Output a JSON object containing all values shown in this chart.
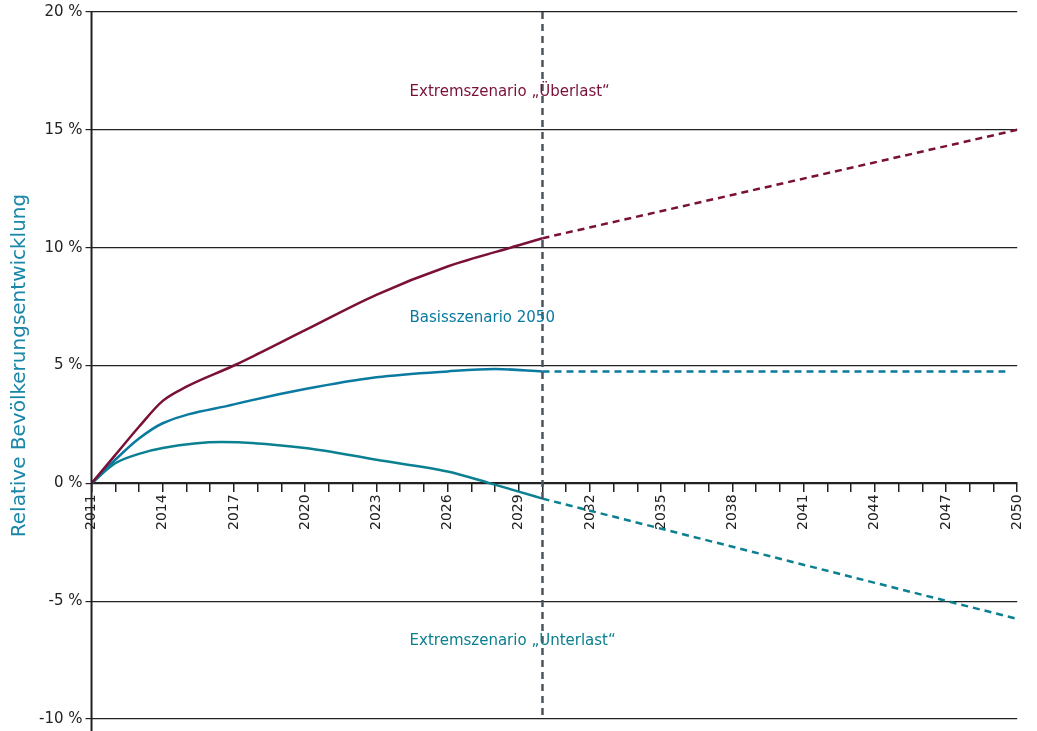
{
  "chart_data": {
    "type": "line",
    "ylabel": "Relative Bevölkerungsentwicklung",
    "xlim": [
      2011,
      2050
    ],
    "ylim": [
      -10,
      20
    ],
    "xticks": [
      2011,
      {
        "value": 2012,
        "label": null
      },
      {
        "value": 2013,
        "label": null
      },
      2014,
      {
        "value": 2015,
        "label": null
      },
      {
        "value": 2016,
        "label": null
      },
      2017,
      {
        "value": 2018,
        "label": null
      },
      {
        "value": 2019,
        "label": null
      },
      2020,
      {
        "value": 2021,
        "label": null
      },
      {
        "value": 2022,
        "label": null
      },
      2023,
      {
        "value": 2024,
        "label": null
      },
      {
        "value": 2025,
        "label": null
      },
      2026,
      {
        "value": 2027,
        "label": null
      },
      {
        "value": 2028,
        "label": null
      },
      2029,
      {
        "value": 2030,
        "label": null
      },
      {
        "value": 2031,
        "label": null
      },
      2032,
      {
        "value": 2033,
        "label": null
      },
      {
        "value": 2034,
        "label": null
      },
      2035,
      {
        "value": 2036,
        "label": null
      },
      {
        "value": 2037,
        "label": null
      },
      2038,
      {
        "value": 2039,
        "label": null
      },
      {
        "value": 2040,
        "label": null
      },
      2041,
      {
        "value": 2042,
        "label": null
      },
      {
        "value": 2043,
        "label": null
      },
      2044,
      {
        "value": 2045,
        "label": null
      },
      {
        "value": 2046,
        "label": null
      },
      2047,
      {
        "value": 2048,
        "label": null
      },
      {
        "value": 2049,
        "label": null
      },
      2050
    ],
    "yticks": [
      {
        "value": -10,
        "label": "-10 %"
      },
      {
        "value": -5,
        "label": "-5 %"
      },
      {
        "value": 0,
        "label": "0 %"
      },
      {
        "value": 5,
        "label": "5 %"
      },
      {
        "value": 10,
        "label": "10 %"
      },
      {
        "value": 15,
        "label": "15 %"
      },
      {
        "value": 20,
        "label": "20 %"
      }
    ],
    "grid": "y",
    "legend": false,
    "marker": "none",
    "ref_lines": [
      {
        "axis": "x",
        "value": 2030,
        "color": "#4a5560",
        "line_style": "dashed"
      }
    ],
    "series": [
      {
        "name": "Extremszenario „Überlast“",
        "color": "#7a1038",
        "line_style": "solid",
        "x": [
          2011,
          2012,
          2013,
          2014,
          2015,
          2017,
          2020,
          2023,
          2026,
          2029,
          2030
        ],
        "values": [
          0,
          1.2,
          2.4,
          3.5,
          4.1,
          5.0,
          6.5,
          8.0,
          9.2,
          10.1,
          10.4
        ]
      },
      {
        "color": "#7a1038",
        "line_style": "dashed",
        "x": [
          2030,
          2050
        ],
        "values": [
          10.4,
          15.0
        ]
      },
      {
        "name": "Basisszenario 2050",
        "color": "#0a7aa0",
        "line_style": "solid",
        "x": [
          2011,
          2012,
          2013,
          2014,
          2017,
          2020,
          2023,
          2026,
          2028,
          2030
        ],
        "values": [
          0,
          1.0,
          1.9,
          2.55,
          3.35,
          4.0,
          4.5,
          4.75,
          4.85,
          4.75
        ]
      },
      {
        "color": "#0a7aa0",
        "line_style": "dashed",
        "x": [
          2030,
          2049.5
        ],
        "values": [
          4.75,
          4.75
        ]
      },
      {
        "name": "Extremszenario „Unterlast“",
        "color": "#0a8090",
        "line_style": "solid",
        "x": [
          2011,
          2012,
          2013,
          2014,
          2016.5,
          2020,
          2023,
          2026,
          2027.8,
          2029,
          2030
        ],
        "values": [
          0,
          0.85,
          1.25,
          1.5,
          1.75,
          1.5,
          1.0,
          0.5,
          0,
          -0.35,
          -0.65
        ]
      },
      {
        "color": "#0a8090",
        "line_style": "dashed",
        "x": [
          2030,
          2050
        ],
        "values": [
          -0.65,
          -5.75
        ]
      }
    ]
  }
}
